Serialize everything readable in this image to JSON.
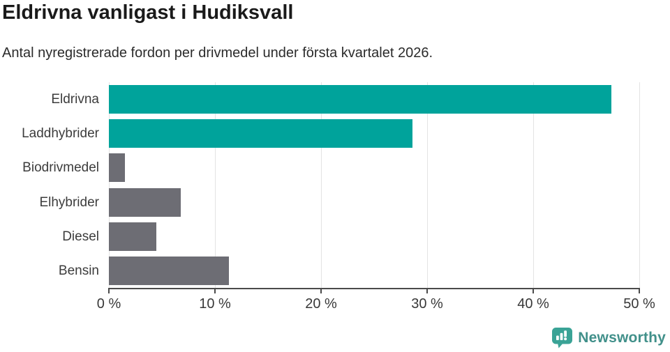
{
  "chart_data": {
    "type": "bar",
    "orientation": "horizontal",
    "title": "Eldrivna vanligast i Hudiksvall",
    "subtitle": "Antal nyregistrerade fordon per drivmedel under första kvartalet 2026.",
    "categories": [
      "Eldrivna",
      "Laddhybrider",
      "Biodrivmedel",
      "Elhybrider",
      "Diesel",
      "Bensin"
    ],
    "values": [
      47.4,
      28.6,
      1.5,
      6.8,
      4.5,
      11.3
    ],
    "value_unit": "%",
    "xlim": [
      0,
      50
    ],
    "xticks": [
      0,
      10,
      20,
      30,
      40,
      50
    ],
    "xtick_labels": [
      "0 %",
      "10 %",
      "20 %",
      "30 %",
      "40 %",
      "50 %"
    ],
    "bar_colors": [
      "#00a39b",
      "#00a39b",
      "#6d6d74",
      "#6d6d74",
      "#6d6d74",
      "#6d6d74"
    ],
    "highlight_color": "#00a39b",
    "default_color": "#6d6d74",
    "gridline_color": "#e3e3e3",
    "axis_color": "#4a4a4a",
    "grid": "vertical",
    "legend": "none"
  },
  "branding": {
    "wordmark": "Newsworthy",
    "icon": "newsworthy-bar-chart-speech-bubble-icon",
    "wordmark_color": "#41908a",
    "icon_color": "#3aa396"
  }
}
